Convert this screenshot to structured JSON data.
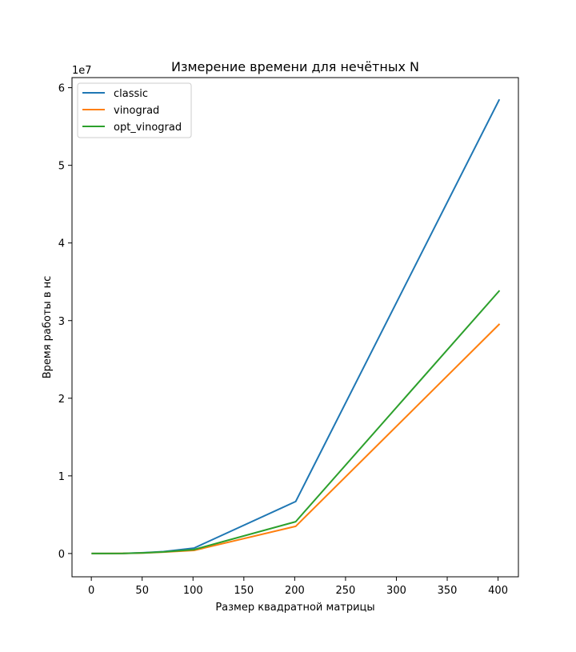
{
  "chart_data": {
    "type": "line",
    "title": "Измерение времени для нечётных N",
    "xlabel": "Размер квадратной матрицы",
    "ylabel": "Время работы в нс",
    "y_offset_label": "1e7",
    "y_scale": 10000000,
    "xlim": [
      -19,
      420
    ],
    "ylim": [
      -3000000,
      61300000
    ],
    "x_ticks": [
      0,
      50,
      100,
      150,
      200,
      250,
      300,
      350,
      400
    ],
    "y_ticks": [
      0,
      10000000,
      20000000,
      30000000,
      40000000,
      50000000,
      60000000
    ],
    "y_tick_labels": [
      "0",
      "1",
      "2",
      "3",
      "4",
      "5",
      "6"
    ],
    "grid": false,
    "legend_position": "top-left",
    "x": [
      1,
      31,
      51,
      71,
      101,
      201,
      401
    ],
    "series": [
      {
        "name": "classic",
        "color": "#1f77b4",
        "values": [
          0,
          10000,
          100000,
          250000,
          700000,
          6700000,
          58400000
        ]
      },
      {
        "name": "vinograd",
        "color": "#ff7f0e",
        "values": [
          0,
          8000,
          70000,
          180000,
          400000,
          3500000,
          29500000
        ]
      },
      {
        "name": "opt_vinograd",
        "color": "#2ca02c",
        "values": [
          0,
          9000,
          80000,
          200000,
          500000,
          4100000,
          33800000
        ]
      }
    ]
  }
}
